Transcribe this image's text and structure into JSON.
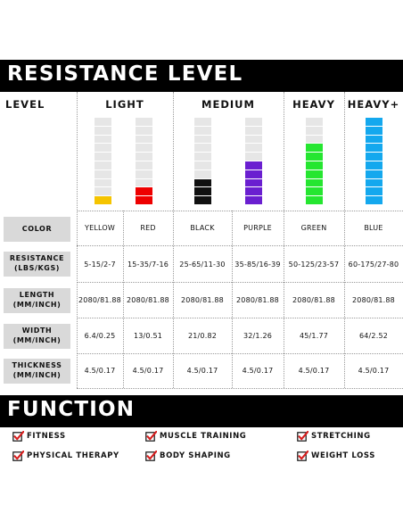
{
  "section_title": "RESISTANCE LEVEL",
  "headers": {
    "level": "LEVEL",
    "light": "LIGHT",
    "medium": "MEDIUM",
    "heavy": "HEAVY",
    "heavy_plus": "HEAVY+"
  },
  "bars": [
    {
      "color": "#f5c400",
      "filled_segments": 1,
      "total_segments": 10
    },
    {
      "color": "#ee0000",
      "filled_segments": 2,
      "total_segments": 10
    },
    {
      "color": "#111111",
      "filled_segments": 3,
      "total_segments": 10
    },
    {
      "color": "#6a1fd0",
      "filled_segments": 5,
      "total_segments": 10
    },
    {
      "color": "#25e630",
      "filled_segments": 7,
      "total_segments": 10
    },
    {
      "color": "#14a8ee",
      "filled_segments": 10,
      "total_segments": 10
    }
  ],
  "rows": [
    {
      "label": "COLOR",
      "values": [
        "YELLOW",
        "RED",
        "BLACK",
        "PURPLE",
        "GREEN",
        "BLUE"
      ]
    },
    {
      "label": "RESISTANCE (LBS/KGS)",
      "values": [
        "5-15/2-7",
        "15-35/7-16",
        "25-65/11-30",
        "35-85/16-39",
        "50-125/23-57",
        "60-175/27-80"
      ]
    },
    {
      "label": "LENGTH (MM/INCH)",
      "values": [
        "2080/81.88",
        "2080/81.88",
        "2080/81.88",
        "2080/81.88",
        "2080/81.88",
        "2080/81.88"
      ]
    },
    {
      "label": "WIDTH (MM/INCH)",
      "values": [
        "6.4/0.25",
        "13/0.51",
        "21/0.82",
        "32/1.26",
        "45/1.77",
        "64/2.52"
      ]
    },
    {
      "label": "THICKNESS (MM/INCH)",
      "values": [
        "4.5/0.17",
        "4.5/0.17",
        "4.5/0.17",
        "4.5/0.17",
        "4.5/0.17",
        "4.5/0.17"
      ]
    }
  ],
  "function_title": "FUNCTION",
  "functions": [
    "FITNESS",
    "MUSCLE TRAINING",
    "STRETCHING",
    "PHYSICAL THERAPY",
    "BODY SHAPING",
    "WEIGHT LOSS"
  ],
  "colors": {
    "check_red": "#d81e1e",
    "label_bg": "#d9d9d9",
    "banner_bg": "#000000",
    "empty_segment": "#e6e6e6"
  }
}
